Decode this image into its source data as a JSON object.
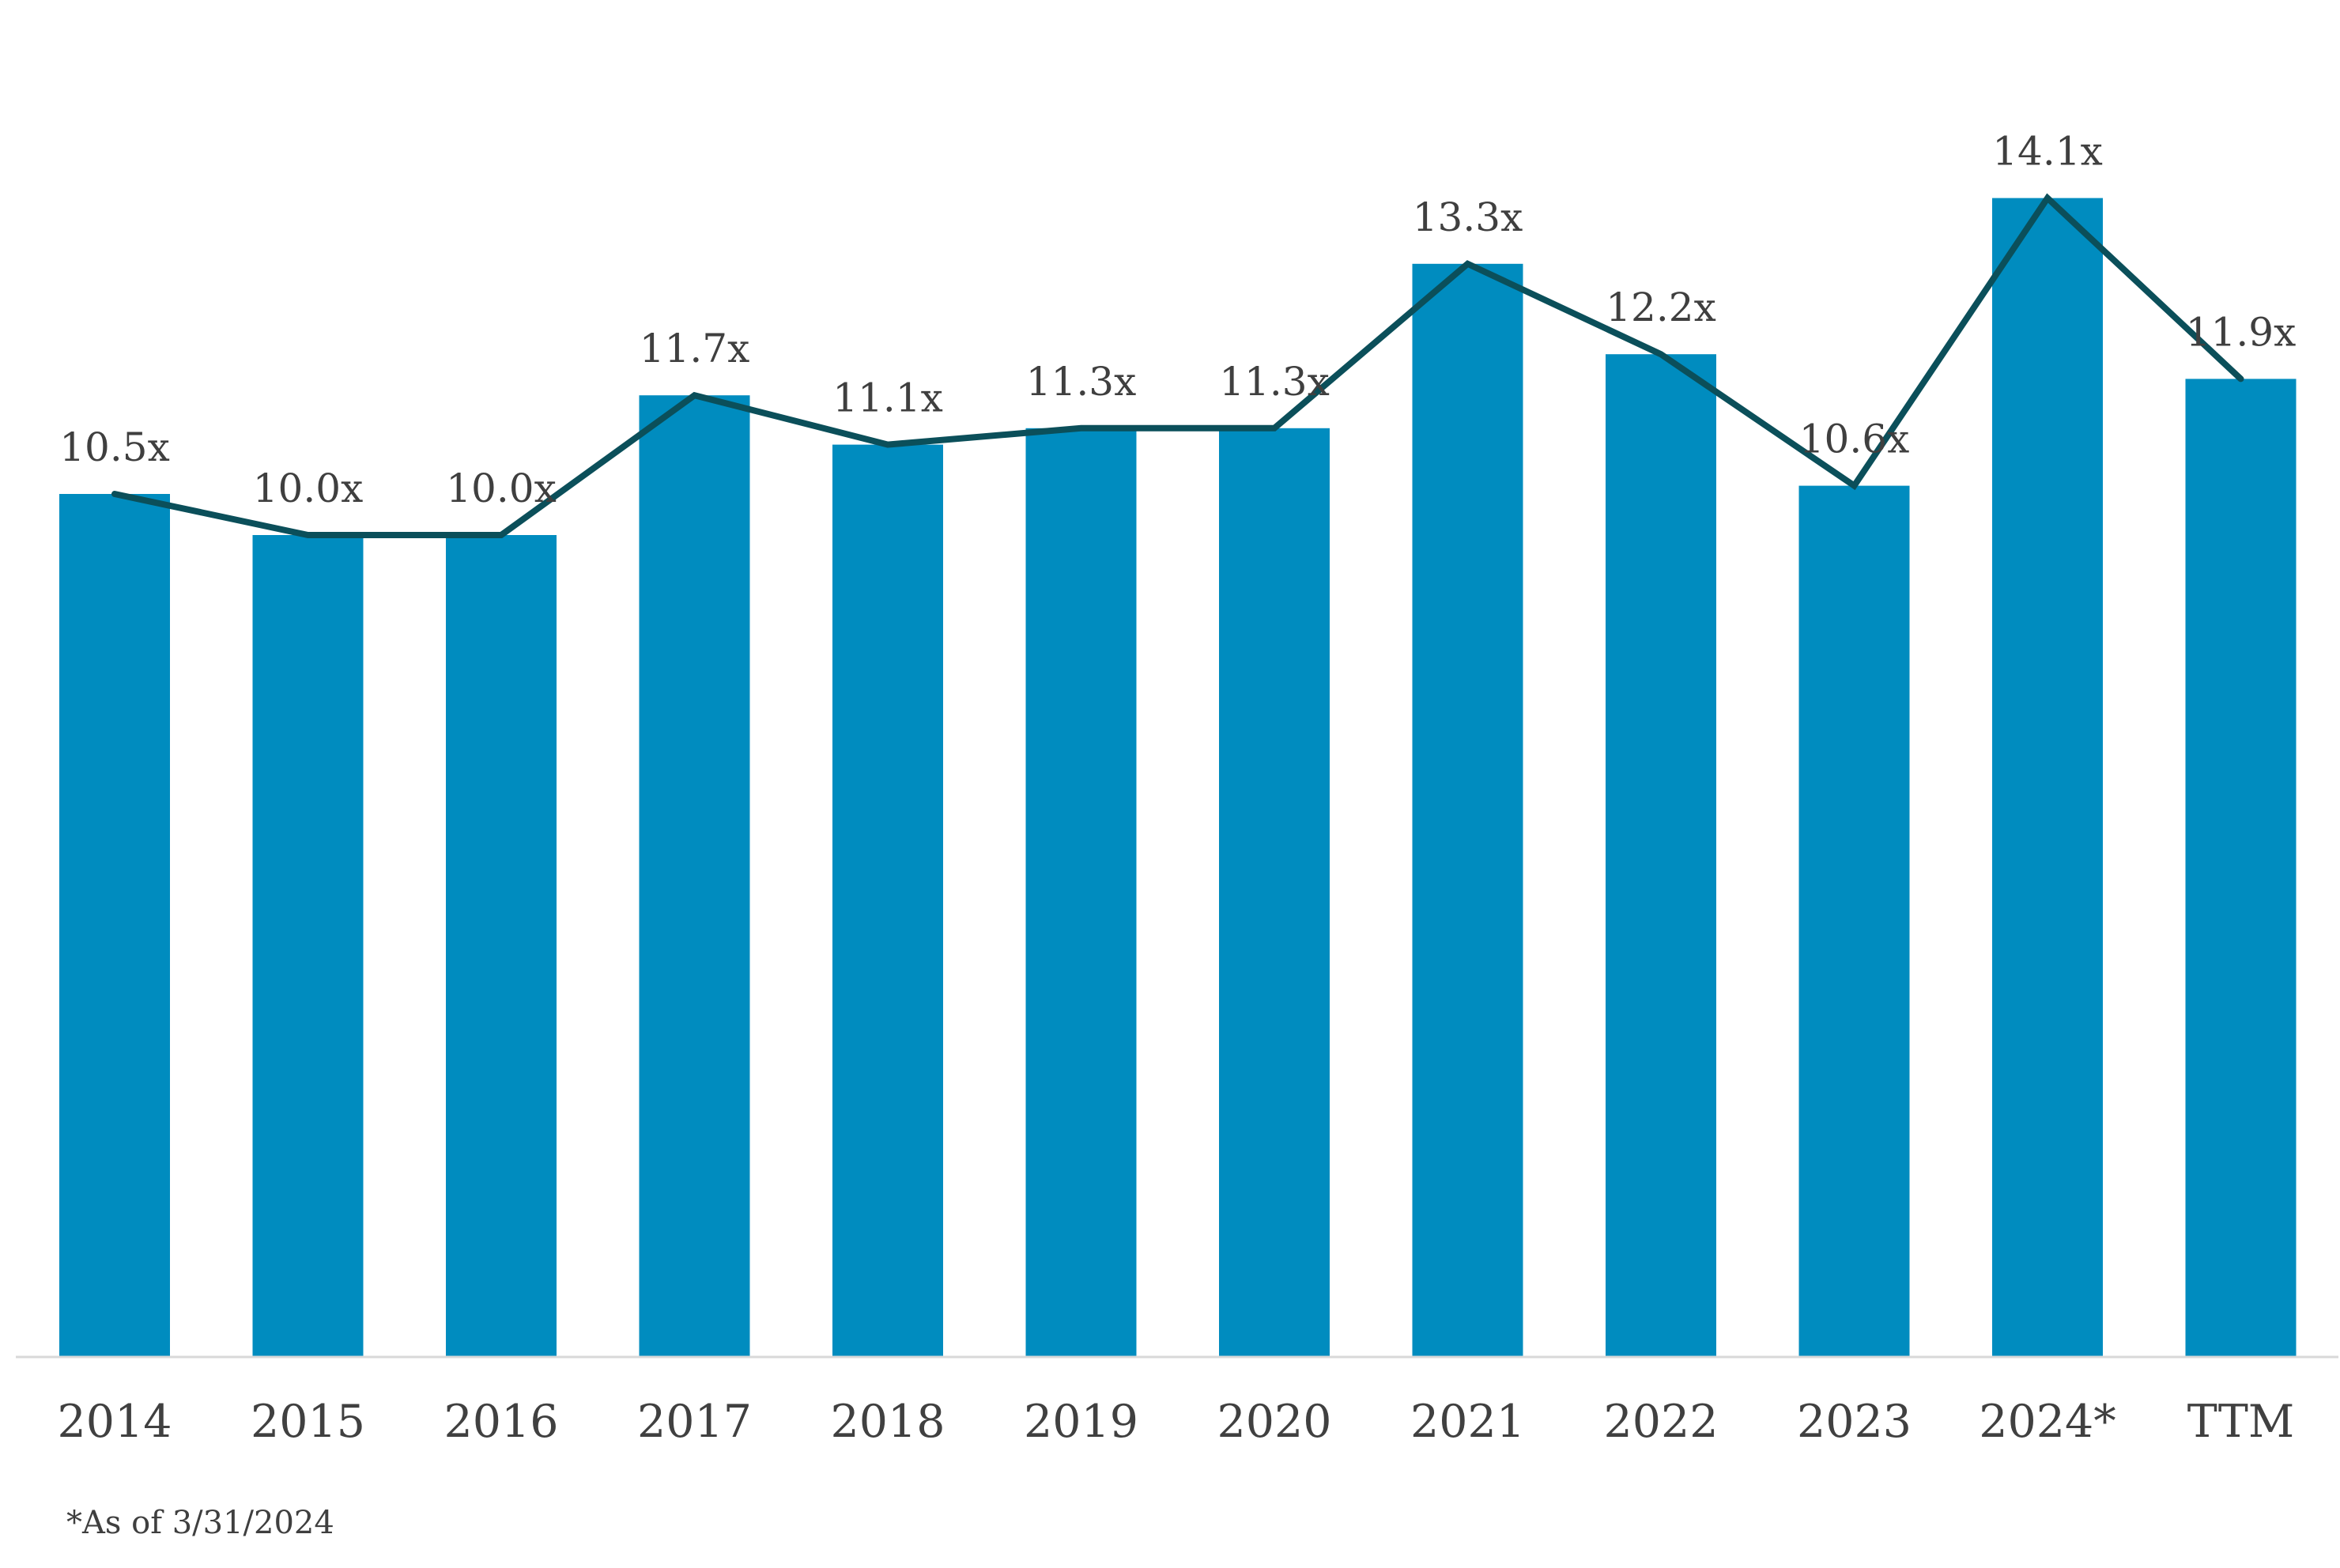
{
  "chart_data": {
    "type": "bar",
    "categories": [
      "2014",
      "2015",
      "2016",
      "2017",
      "2018",
      "2019",
      "2020",
      "2021",
      "2022",
      "2023",
      "2024*",
      "TTM"
    ],
    "values": [
      10.5,
      10.0,
      10.0,
      11.7,
      11.1,
      11.3,
      11.3,
      13.3,
      12.2,
      10.6,
      14.1,
      11.9
    ],
    "labels": [
      "10.5x",
      "10.0x",
      "10.0x",
      "11.7x",
      "11.1x",
      "11.3x",
      "11.3x",
      "13.3x",
      "12.2x",
      "10.6x",
      "14.1x",
      "11.9x"
    ],
    "overlay_line": "same values as bars",
    "title": "",
    "xlabel": "",
    "ylabel": "",
    "ylim": [
      0,
      15.5
    ],
    "grid": false,
    "legend": "none",
    "colors": {
      "bar": "#008cbf",
      "line": "#0b4f5a",
      "text": "#404040",
      "axis": "#d9d9d9"
    }
  },
  "footnote": "*As of 3/31/2024"
}
